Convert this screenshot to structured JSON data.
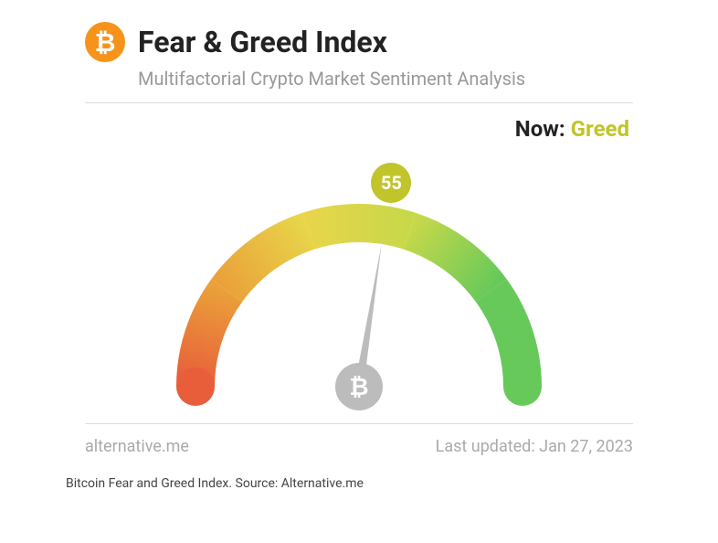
{
  "header": {
    "logo_symbol": "₿",
    "logo_bg": "#f7931a",
    "title": "Fear & Greed Index",
    "subtitle": "Multifactorial Crypto Market Sentiment Analysis"
  },
  "gauge": {
    "type": "gauge",
    "value": 55,
    "min": 0,
    "max": 100,
    "now_label": "Now:",
    "now_status": "Greed",
    "now_status_color": "#c1c42a",
    "badge_bg": "#c1c42a",
    "badge_text_color": "#ffffff",
    "arc_thickness": 42,
    "arc_outer_radius": 200,
    "colors": {
      "extreme_fear": "#e85d3a",
      "fear": "#eaa13a",
      "neutral": "#e8d54a",
      "greed": "#c7d84a",
      "extreme_greed": "#66c95a"
    },
    "needle_color": "#bcbcbc",
    "needle_length": 158,
    "hub_outer": "#bcbcbc",
    "hub_inner_symbol": "₿",
    "hub_radius": 26,
    "background_color": "#ffffff"
  },
  "footer": {
    "source": "alternative.me",
    "updated_prefix": "Last updated:",
    "updated_date": "Jan 27, 2023"
  },
  "caption": "Bitcoin Fear and Greed Index. Source: Alternative.me"
}
